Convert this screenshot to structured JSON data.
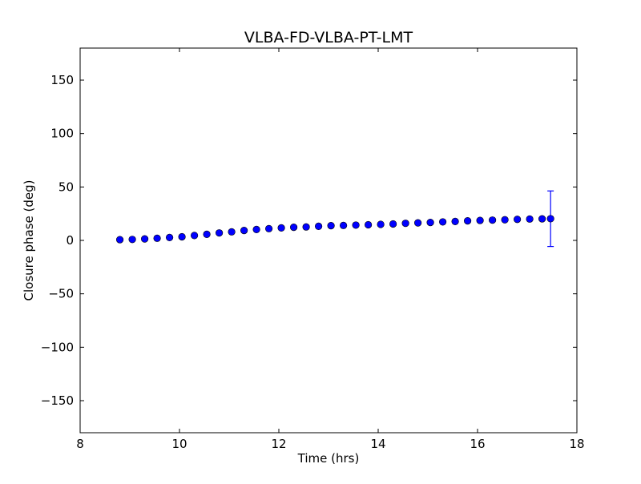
{
  "chart_data": {
    "type": "scatter",
    "title": "VLBA-FD-VLBA-PT-LMT",
    "xlabel": "Time (hrs)",
    "ylabel": "Closure phase (deg)",
    "xlim": [
      8,
      18
    ],
    "ylim": [
      -180,
      180
    ],
    "xticks": [
      8,
      10,
      12,
      14,
      16,
      18
    ],
    "xtick_labels": [
      "8",
      "10",
      "12",
      "14",
      "16",
      "18"
    ],
    "yticks": [
      -150,
      -100,
      -50,
      0,
      50,
      100,
      150
    ],
    "ytick_labels": [
      "−150",
      "−100",
      "−50",
      "0",
      "50",
      "100",
      "150"
    ],
    "grid": false,
    "series": [
      {
        "name": "closure phase",
        "color": "#0000ff",
        "x": [
          8.8,
          9.05,
          9.3,
          9.55,
          9.8,
          10.05,
          10.3,
          10.55,
          10.8,
          11.05,
          11.3,
          11.55,
          11.8,
          12.05,
          12.3,
          12.55,
          12.8,
          13.05,
          13.3,
          13.55,
          13.8,
          14.05,
          14.3,
          14.55,
          14.8,
          15.05,
          15.3,
          15.55,
          15.8,
          16.05,
          16.3,
          16.55,
          16.8,
          17.05,
          17.3,
          17.47
        ],
        "y": [
          0.7,
          0.9,
          1.4,
          2.0,
          2.7,
          3.4,
          4.6,
          5.7,
          7.0,
          8.0,
          9.3,
          10.2,
          11.0,
          11.7,
          12.3,
          12.6,
          13.2,
          13.8,
          14.0,
          14.3,
          14.6,
          15.0,
          15.4,
          16.0,
          16.4,
          16.8,
          17.3,
          17.7,
          18.3,
          18.7,
          19.0,
          19.3,
          19.7,
          20.0,
          20.2,
          20.3
        ],
        "yerr": [
          0,
          0,
          0,
          0,
          0,
          0,
          0,
          0,
          0,
          0,
          0,
          0,
          0,
          0,
          0,
          0,
          0,
          0,
          0,
          0,
          0,
          0,
          0,
          0,
          0,
          0,
          0,
          0,
          0,
          0,
          0,
          0,
          0,
          0,
          0,
          26
        ]
      }
    ]
  }
}
